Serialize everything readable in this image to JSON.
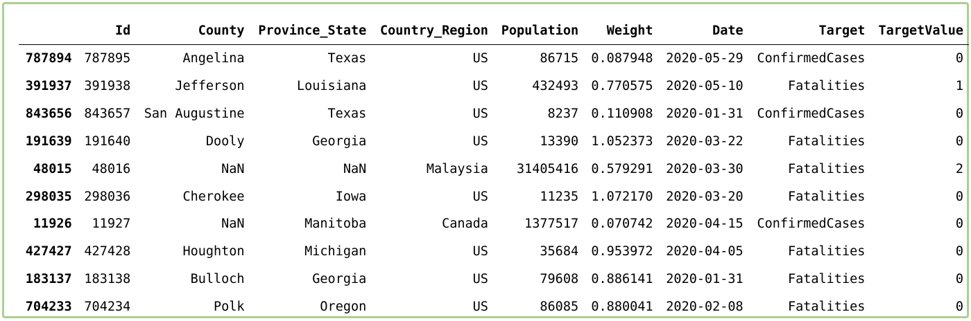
{
  "table": {
    "columns": [
      "",
      "Id",
      "County",
      "Province_State",
      "Country_Region",
      "Population",
      "Weight",
      "Date",
      "Target",
      "TargetValue"
    ],
    "rows": [
      {
        "index": "787894",
        "Id": "787895",
        "County": "Angelina",
        "Province_State": "Texas",
        "Country_Region": "US",
        "Population": "86715",
        "Weight": "0.087948",
        "Date": "2020-05-29",
        "Target": "ConfirmedCases",
        "TargetValue": "0"
      },
      {
        "index": "391937",
        "Id": "391938",
        "County": "Jefferson",
        "Province_State": "Louisiana",
        "Country_Region": "US",
        "Population": "432493",
        "Weight": "0.770575",
        "Date": "2020-05-10",
        "Target": "Fatalities",
        "TargetValue": "1"
      },
      {
        "index": "843656",
        "Id": "843657",
        "County": "San Augustine",
        "Province_State": "Texas",
        "Country_Region": "US",
        "Population": "8237",
        "Weight": "0.110908",
        "Date": "2020-01-31",
        "Target": "ConfirmedCases",
        "TargetValue": "0"
      },
      {
        "index": "191639",
        "Id": "191640",
        "County": "Dooly",
        "Province_State": "Georgia",
        "Country_Region": "US",
        "Population": "13390",
        "Weight": "1.052373",
        "Date": "2020-03-22",
        "Target": "Fatalities",
        "TargetValue": "0"
      },
      {
        "index": "48015",
        "Id": "48016",
        "County": "NaN",
        "Province_State": "NaN",
        "Country_Region": "Malaysia",
        "Population": "31405416",
        "Weight": "0.579291",
        "Date": "2020-03-30",
        "Target": "Fatalities",
        "TargetValue": "2"
      },
      {
        "index": "298035",
        "Id": "298036",
        "County": "Cherokee",
        "Province_State": "Iowa",
        "Country_Region": "US",
        "Population": "11235",
        "Weight": "1.072170",
        "Date": "2020-03-20",
        "Target": "Fatalities",
        "TargetValue": "0"
      },
      {
        "index": "11926",
        "Id": "11927",
        "County": "NaN",
        "Province_State": "Manitoba",
        "Country_Region": "Canada",
        "Population": "1377517",
        "Weight": "0.070742",
        "Date": "2020-04-15",
        "Target": "ConfirmedCases",
        "TargetValue": "0"
      },
      {
        "index": "427427",
        "Id": "427428",
        "County": "Houghton",
        "Province_State": "Michigan",
        "Country_Region": "US",
        "Population": "35684",
        "Weight": "0.953972",
        "Date": "2020-04-05",
        "Target": "Fatalities",
        "TargetValue": "0"
      },
      {
        "index": "183137",
        "Id": "183138",
        "County": "Bulloch",
        "Province_State": "Georgia",
        "Country_Region": "US",
        "Population": "79608",
        "Weight": "0.886141",
        "Date": "2020-01-31",
        "Target": "Fatalities",
        "TargetValue": "0"
      },
      {
        "index": "704233",
        "Id": "704234",
        "County": "Polk",
        "Province_State": "Oregon",
        "Country_Region": "US",
        "Population": "86085",
        "Weight": "0.880041",
        "Date": "2020-02-08",
        "Target": "Fatalities",
        "TargetValue": "0"
      }
    ]
  },
  "colors": {
    "frame_border": "#a9d18e",
    "text": "#000000",
    "background": "#ffffff"
  }
}
